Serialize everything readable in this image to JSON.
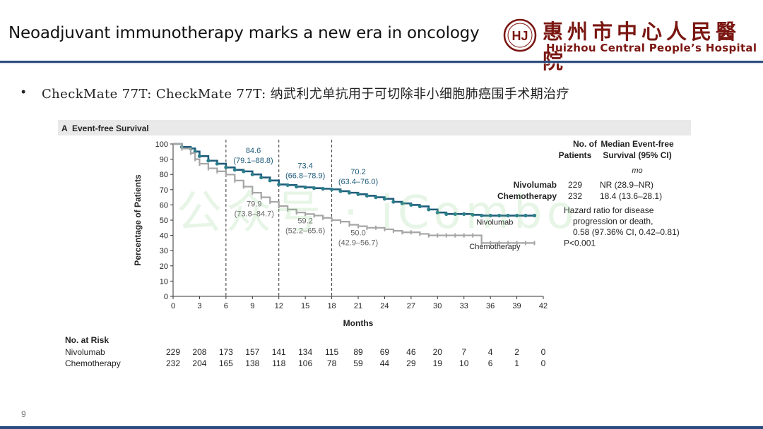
{
  "slide": {
    "title": "Neoadjuvant immunotherapy marks a new era in oncology",
    "page_number": "9",
    "bullet": "CheckMate 77T: CheckMate 77T: 纳武利尤单抗用于可切除非小细胞肺癌围手术期治疗",
    "watermark": "公众号 · iCombo"
  },
  "hospital": {
    "name_cn": "惠州市中心人民醫院",
    "name_en": "Huizhou Central People’s Hospital",
    "logo_text": "HJ",
    "logo_color": "#7a1712"
  },
  "colors": {
    "nivolumab": "#1f5b7a",
    "nivolumab_marker": "#2a7f8a",
    "chemotherapy": "#a6a6a6",
    "header_rule": "#2b4c7e"
  },
  "chart_data": {
    "type": "line",
    "panel_label": "A",
    "title": "Event-free Survival",
    "xlabel": "Months",
    "ylabel": "Percentage of Patients",
    "xlim": [
      0,
      42
    ],
    "ylim": [
      0,
      100
    ],
    "x_ticks": [
      0,
      3,
      6,
      9,
      12,
      15,
      18,
      21,
      24,
      27,
      30,
      33,
      36,
      39,
      42
    ],
    "y_ticks": [
      0,
      10,
      20,
      30,
      40,
      50,
      60,
      70,
      80,
      90,
      100
    ],
    "reference_lines_x": [
      6,
      12,
      18
    ],
    "series": [
      {
        "name": "Nivolumab",
        "label_position": [
          36.5,
          47
        ],
        "x": [
          0,
          1,
          2,
          2.5,
          3,
          4,
          5,
          6,
          7,
          8,
          9,
          10,
          11,
          12,
          13,
          14,
          15,
          16,
          17,
          18,
          19,
          20,
          21,
          22,
          23,
          24,
          25,
          26,
          27,
          28,
          29,
          30,
          31,
          32,
          33,
          34,
          35,
          36,
          37,
          38,
          39,
          40,
          41
        ],
        "y": [
          100,
          98,
          97,
          95,
          92,
          89,
          87,
          84.6,
          83,
          82,
          80,
          78,
          76,
          73.4,
          73,
          72,
          71.5,
          71,
          70.6,
          70.2,
          69,
          68,
          67,
          66,
          65,
          64,
          62,
          61,
          60,
          59,
          57,
          55,
          54,
          54,
          54,
          53.5,
          53,
          53,
          53,
          53,
          53,
          53,
          53
        ],
        "annotations": [
          {
            "x": 9.1,
            "y": 94,
            "line1": "84.6",
            "line2": "(79.1–88.8)"
          },
          {
            "x": 15.0,
            "y": 84,
            "line1": "73.4",
            "line2": "(66.8–78.9)"
          },
          {
            "x": 21.0,
            "y": 80,
            "line1": "70.2",
            "line2": "(63.4–76.0)"
          }
        ]
      },
      {
        "name": "Chemotherapy",
        "label_position": [
          36.5,
          31
        ],
        "x": [
          0,
          1,
          2,
          2.5,
          3,
          4,
          5,
          6,
          7,
          8,
          9,
          10,
          11,
          12,
          13,
          14,
          15,
          16,
          17,
          18,
          19,
          20,
          21,
          22,
          23,
          24,
          25,
          26,
          27,
          28,
          29,
          30,
          31,
          32,
          33,
          34,
          35,
          36,
          37,
          38,
          39,
          40,
          41
        ],
        "y": [
          100,
          97,
          94,
          90,
          87,
          84,
          82,
          79.9,
          76,
          72,
          68,
          65,
          62,
          59.2,
          57,
          55,
          54,
          53,
          51.5,
          50.0,
          49,
          47,
          46,
          45,
          45,
          44,
          43,
          42,
          42,
          41,
          40,
          40,
          40,
          40,
          40,
          40,
          35,
          35,
          35,
          35,
          35,
          35,
          35
        ],
        "annotations": [
          {
            "x": 9.2,
            "y": 59,
            "line1": "79.9",
            "line2": "(73.8–84.7)"
          },
          {
            "x": 15.0,
            "y": 48,
            "line1": "59.2",
            "line2": "(52.2–65.6)"
          },
          {
            "x": 21.0,
            "y": 40,
            "line1": "50.0",
            "line2": "(42.9–56.7)"
          }
        ]
      }
    ],
    "legend": {
      "col1_header": [
        "No. of",
        "Patients"
      ],
      "col2_header": [
        "Median Event-free",
        "Survival (95% CI)"
      ],
      "unit": "mo",
      "rows": [
        {
          "name": "Nivolumab",
          "n": "229",
          "median": "NR (28.9–NR)"
        },
        {
          "name": "Chemotherapy",
          "n": "232",
          "median": "18.4 (13.6–28.1)"
        }
      ],
      "hazard_lines": [
        "Hazard ratio for disease",
        "progression or death,",
        "0.58 (97.36% CI, 0.42–0.81)",
        "P<0.001"
      ]
    },
    "at_risk": {
      "title": "No. at Risk",
      "rows": [
        {
          "name": "Nivolumab",
          "values": [
            229,
            208,
            173,
            157,
            141,
            134,
            115,
            89,
            69,
            46,
            20,
            7,
            4,
            2,
            0
          ]
        },
        {
          "name": "Chemotherapy",
          "values": [
            232,
            204,
            165,
            138,
            118,
            106,
            78,
            59,
            44,
            29,
            19,
            10,
            6,
            1,
            0
          ]
        }
      ]
    }
  }
}
